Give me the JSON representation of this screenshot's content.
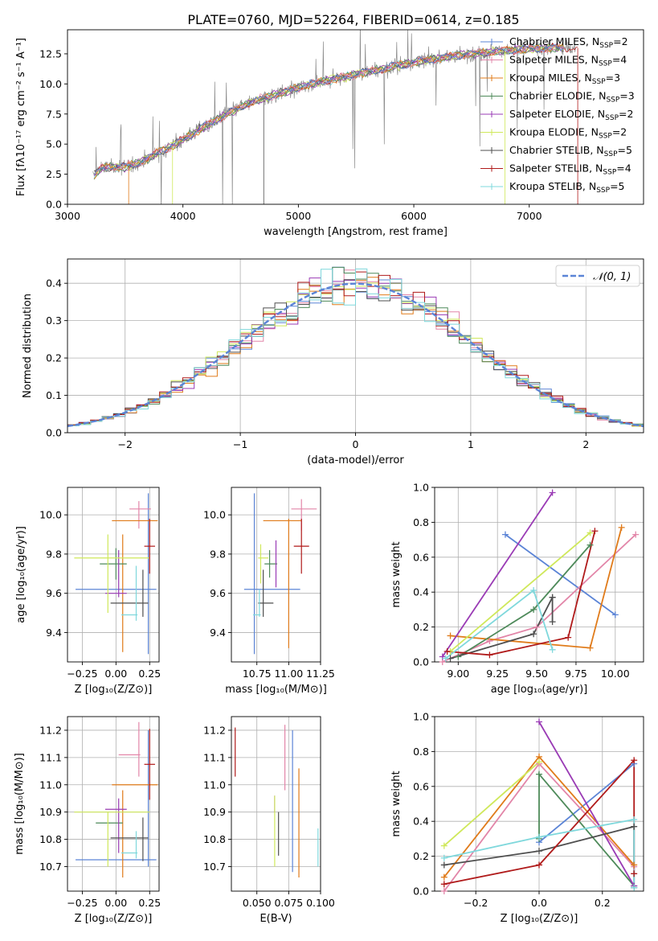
{
  "colors": {
    "chabrier_miles": "#5b84d6",
    "salpeter_miles": "#e285a8",
    "kroupa_miles": "#e07b1a",
    "chabrier_elodie": "#4e8a5a",
    "salpeter_elodie": "#9a3bb5",
    "kroupa_elodie": "#cfe85a",
    "chabrier_stelib": "#4f4f4f",
    "salpeter_stelib": "#b01a1a",
    "kroupa_stelib": "#7fd8dc",
    "normal": "#5b84d6"
  },
  "chart_data": [
    {
      "id": "spectrum",
      "type": "line",
      "title": "PLATE=0760, MJD=52264, FIBERID=0614, z=0.185",
      "xlabel": "wavelength [Angstrom, rest frame]",
      "ylabel": "Flux [fλ10⁻¹⁷ erg cm⁻² s⁻¹ A⁻¹]",
      "xlim": [
        3000,
        7990
      ],
      "ylim": [
        0,
        14.5
      ],
      "xticks": [
        "3000",
        "4000",
        "5000",
        "6000",
        "7000"
      ],
      "yticks": [
        "0.0",
        "2.5",
        "5.0",
        "7.5",
        "10.0",
        "12.5"
      ],
      "legend_position": "top-right",
      "legend": [
        {
          "key": "chabrier_miles",
          "label": "Chabrier MILES, N",
          "sub": "SSP",
          "tail": "=2"
        },
        {
          "key": "salpeter_miles",
          "label": "Salpeter MILES, N",
          "sub": "SSP",
          "tail": "=4"
        },
        {
          "key": "kroupa_miles",
          "label": "Kroupa MILES, N",
          "sub": "SSP",
          "tail": "=3"
        },
        {
          "key": "chabrier_elodie",
          "label": "Chabrier ELODIE, N",
          "sub": "SSP",
          "tail": "=3"
        },
        {
          "key": "salpeter_elodie",
          "label": "Salpeter ELODIE, N",
          "sub": "SSP",
          "tail": "=2"
        },
        {
          "key": "kroupa_elodie",
          "label": "Kroupa ELODIE, N",
          "sub": "SSP",
          "tail": "=2"
        },
        {
          "key": "chabrier_stelib",
          "label": "Chabrier STELIB, N",
          "sub": "SSP",
          "tail": "=5"
        },
        {
          "key": "salpeter_stelib",
          "label": "Salpeter STELIB, N",
          "sub": "SSP",
          "tail": "=4"
        },
        {
          "key": "kroupa_stelib",
          "label": "Kroupa STELIB, N",
          "sub": "SSP",
          "tail": "=5"
        }
      ],
      "continuum": [
        [
          3220,
          2.3
        ],
        [
          3300,
          3.0
        ],
        [
          3400,
          3.1
        ],
        [
          3500,
          3.1
        ],
        [
          3600,
          3.4
        ],
        [
          3700,
          3.8
        ],
        [
          3800,
          4.4
        ],
        [
          3900,
          4.8
        ],
        [
          4000,
          5.4
        ],
        [
          4200,
          6.5
        ],
        [
          4400,
          7.6
        ],
        [
          4600,
          8.5
        ],
        [
          4800,
          9.1
        ],
        [
          5000,
          9.7
        ],
        [
          5200,
          10.2
        ],
        [
          5400,
          10.6
        ],
        [
          5600,
          11.0
        ],
        [
          5800,
          11.4
        ],
        [
          6000,
          11.8
        ],
        [
          6200,
          12.1
        ],
        [
          6400,
          12.4
        ],
        [
          6600,
          12.6
        ],
        [
          6800,
          12.8
        ],
        [
          7000,
          12.9
        ],
        [
          7200,
          13.0
        ],
        [
          7400,
          13.0
        ]
      ]
    },
    {
      "id": "residuals",
      "type": "histogram",
      "xlabel": "(data-model)/error",
      "ylabel": "Normed distribution",
      "xlim": [
        -2.5,
        2.5
      ],
      "ylim": [
        0,
        0.465
      ],
      "xticks": [
        "−2",
        "−1",
        "0",
        "1",
        "2"
      ],
      "yticks": [
        "0.0",
        "0.1",
        "0.2",
        "0.3",
        "0.4"
      ],
      "grid": true,
      "legend_position": "top-right",
      "legend_label": "𝒩(0, 1)",
      "reference": {
        "name": "N(0,1)",
        "mean": 0,
        "sigma": 1
      },
      "bins": {
        "start": -2.5,
        "width": 0.1,
        "count": 50
      }
    },
    {
      "id": "age_vs_Z",
      "type": "errorbar",
      "xlabel": "Z [log₁₀(Z/Z⊙)]",
      "ylabel": "age  [log₁₀(age/yr)]",
      "xlim": [
        -0.36,
        0.32
      ],
      "ylim": [
        9.25,
        10.14
      ],
      "xticks": [
        "−0.25",
        "0.00",
        "0.25"
      ],
      "yticks": [
        "9.4",
        "9.6",
        "9.8",
        "10.0"
      ],
      "grid": true,
      "points": [
        {
          "key": "chabrier_miles",
          "x": 0.0,
          "xerr": 0.3,
          "y": 9.62,
          "yerr": 0.0
        },
        {
          "key": "chabrier_miles",
          "x": 0.24,
          "xerr": 0.0,
          "y": 9.7,
          "yerr": 0.41
        },
        {
          "key": "salpeter_miles",
          "x": 0.18,
          "xerr": 0.08,
          "y": 10.03,
          "yerr": 0.0
        },
        {
          "key": "salpeter_miles",
          "x": 0.17,
          "xerr": 0.0,
          "y": 10.0,
          "yerr": 0.07
        },
        {
          "key": "kroupa_miles",
          "x": 0.05,
          "xerr": 0.0,
          "y": 9.6,
          "yerr": 0.3
        },
        {
          "key": "kroupa_miles",
          "x": 0.14,
          "xerr": 0.17,
          "y": 9.97,
          "yerr": 0.0
        },
        {
          "key": "chabrier_elodie",
          "x": -0.02,
          "xerr": 0.1,
          "y": 9.75,
          "yerr": 0.0
        },
        {
          "key": "chabrier_elodie",
          "x": 0.0,
          "xerr": 0.0,
          "y": 9.75,
          "yerr": 0.08
        },
        {
          "key": "salpeter_elodie",
          "x": 0.0,
          "xerr": 0.08,
          "y": 9.6,
          "yerr": 0.0
        },
        {
          "key": "salpeter_elodie",
          "x": 0.02,
          "xerr": 0.0,
          "y": 9.7,
          "yerr": 0.12
        },
        {
          "key": "kroupa_elodie",
          "x": -0.03,
          "xerr": 0.28,
          "y": 9.78,
          "yerr": 0.0
        },
        {
          "key": "kroupa_elodie",
          "x": -0.06,
          "xerr": 0.0,
          "y": 9.7,
          "yerr": 0.2
        },
        {
          "key": "chabrier_stelib",
          "x": 0.1,
          "xerr": 0.14,
          "y": 9.55,
          "yerr": 0.0
        },
        {
          "key": "chabrier_stelib",
          "x": 0.2,
          "xerr": 0.0,
          "y": 9.6,
          "yerr": 0.12
        },
        {
          "key": "salpeter_stelib",
          "x": 0.25,
          "xerr": 0.04,
          "y": 9.84,
          "yerr": 0.14
        },
        {
          "key": "kroupa_stelib",
          "x": 0.1,
          "xerr": 0.06,
          "y": 9.49,
          "yerr": 0.0
        },
        {
          "key": "kroupa_stelib",
          "x": 0.15,
          "xerr": 0.0,
          "y": 9.6,
          "yerr": 0.14
        }
      ]
    },
    {
      "id": "age_vs_mass",
      "type": "errorbar",
      "xlabel": "mass [log₁₀(M/M⊙)]",
      "ylabel": "",
      "xlim": [
        10.55,
        11.25
      ],
      "ylim": [
        9.25,
        10.14
      ],
      "xticks": [
        "10.75",
        "11.00",
        "11.25"
      ],
      "yticks": [
        "9.4",
        "9.6",
        "9.8",
        "10.0"
      ],
      "grid": true,
      "points": [
        {
          "key": "chabrier_miles",
          "x": 10.87,
          "xerr": 0.22,
          "y": 9.62,
          "yerr": 0.0
        },
        {
          "key": "chabrier_miles",
          "x": 10.73,
          "xerr": 0.0,
          "y": 9.7,
          "yerr": 0.41
        },
        {
          "key": "salpeter_miles",
          "x": 11.12,
          "xerr": 0.1,
          "y": 10.03,
          "yerr": 0.0
        },
        {
          "key": "salpeter_miles",
          "x": 11.1,
          "xerr": 0.0,
          "y": 10.0,
          "yerr": 0.08
        },
        {
          "key": "kroupa_miles",
          "x": 11.0,
          "xerr": 0.0,
          "y": 9.65,
          "yerr": 0.33
        },
        {
          "key": "kroupa_miles",
          "x": 10.95,
          "xerr": 0.15,
          "y": 9.97,
          "yerr": 0.0
        },
        {
          "key": "chabrier_elodie",
          "x": 10.86,
          "xerr": 0.05,
          "y": 9.75,
          "yerr": 0.0
        },
        {
          "key": "chabrier_elodie",
          "x": 10.85,
          "xerr": 0.0,
          "y": 9.75,
          "yerr": 0.07
        },
        {
          "key": "salpeter_elodie",
          "x": 10.9,
          "xerr": 0.0,
          "y": 9.75,
          "yerr": 0.12
        },
        {
          "key": "kroupa_elodie",
          "x": 10.8,
          "xerr": 0.04,
          "y": 9.78,
          "yerr": 0.0
        },
        {
          "key": "kroupa_elodie",
          "x": 10.78,
          "xerr": 0.0,
          "y": 9.75,
          "yerr": 0.1
        },
        {
          "key": "chabrier_stelib",
          "x": 10.82,
          "xerr": 0.06,
          "y": 9.55,
          "yerr": 0.0
        },
        {
          "key": "chabrier_stelib",
          "x": 10.8,
          "xerr": 0.0,
          "y": 9.6,
          "yerr": 0.12
        },
        {
          "key": "salpeter_stelib",
          "x": 11.1,
          "xerr": 0.06,
          "y": 9.84,
          "yerr": 0.14
        },
        {
          "key": "kroupa_stelib",
          "x": 10.75,
          "xerr": 0.03,
          "y": 9.49,
          "yerr": 0.0
        },
        {
          "key": "kroupa_stelib",
          "x": 10.77,
          "xerr": 0.0,
          "y": 9.55,
          "yerr": 0.07
        }
      ]
    },
    {
      "id": "weight_vs_age",
      "type": "line",
      "xlabel": "age  [log₁₀(age/yr)]",
      "ylabel": "mass weight",
      "xlim": [
        8.85,
        10.18
      ],
      "ylim": [
        0,
        1.0
      ],
      "xticks": [
        "9.00",
        "9.25",
        "9.50",
        "9.75",
        "10.00"
      ],
      "yticks": [
        "0.0",
        "0.2",
        "0.4",
        "0.6",
        "0.8",
        "1.0"
      ],
      "grid": true,
      "series": [
        {
          "key": "chabrier_miles",
          "x": [
            9.3,
            10.0
          ],
          "y": [
            0.73,
            0.27
          ]
        },
        {
          "key": "salpeter_miles",
          "x": [
            8.9,
            9.2,
            9.5,
            10.13
          ],
          "y": [
            0.0,
            0.12,
            0.2,
            0.73
          ]
        },
        {
          "key": "kroupa_miles",
          "x": [
            8.95,
            9.84,
            10.04
          ],
          "y": [
            0.15,
            0.08,
            0.77
          ]
        },
        {
          "key": "chabrier_elodie",
          "x": [
            9.0,
            9.48,
            9.84
          ],
          "y": [
            0.03,
            0.3,
            0.67
          ]
        },
        {
          "key": "salpeter_elodie",
          "x": [
            8.9,
            9.6
          ],
          "y": [
            0.03,
            0.97
          ]
        },
        {
          "key": "kroupa_elodie",
          "x": [
            8.95,
            9.84
          ],
          "y": [
            0.06,
            0.74
          ]
        },
        {
          "key": "chabrier_stelib",
          "x": [
            8.95,
            9.48,
            9.6,
            9.6,
            9.6
          ],
          "y": [
            0.02,
            0.16,
            0.37,
            0.23,
            0.37
          ]
        },
        {
          "key": "salpeter_stelib",
          "x": [
            8.93,
            9.2,
            9.7,
            9.87
          ],
          "y": [
            0.06,
            0.04,
            0.14,
            0.75
          ]
        },
        {
          "key": "kroupa_stelib",
          "x": [
            8.92,
            9.48,
            9.6
          ],
          "y": [
            0.02,
            0.41,
            0.07
          ]
        }
      ]
    },
    {
      "id": "mass_vs_Z",
      "type": "errorbar",
      "xlabel": "Z [log₁₀(Z/Z⊙)]",
      "ylabel": "mass [log₁₀(M/M⊙)]",
      "xlim": [
        -0.36,
        0.32
      ],
      "ylim": [
        10.61,
        11.25
      ],
      "xticks": [
        "−0.25",
        "0.00",
        "0.25"
      ],
      "yticks": [
        "10.7",
        "10.8",
        "10.9",
        "11.0",
        "11.1",
        "11.2"
      ],
      "grid": true,
      "points": [
        {
          "key": "chabrier_miles",
          "x": 0.0,
          "xerr": 0.3,
          "y": 10.725,
          "yerr": 0.0
        },
        {
          "key": "chabrier_miles",
          "x": 0.24,
          "xerr": 0.0,
          "y": 10.95,
          "yerr": 0.25
        },
        {
          "key": "salpeter_miles",
          "x": 0.1,
          "xerr": 0.08,
          "y": 11.11,
          "yerr": 0.0
        },
        {
          "key": "salpeter_miles",
          "x": 0.17,
          "xerr": 0.0,
          "y": 11.13,
          "yerr": 0.1
        },
        {
          "key": "kroupa_miles",
          "x": 0.05,
          "xerr": 0.0,
          "y": 10.82,
          "yerr": 0.16
        },
        {
          "key": "kroupa_miles",
          "x": 0.14,
          "xerr": 0.17,
          "y": 11.0,
          "yerr": 0.0
        },
        {
          "key": "chabrier_elodie",
          "x": -0.05,
          "xerr": 0.1,
          "y": 10.86,
          "yerr": 0.0
        },
        {
          "key": "salpeter_elodie",
          "x": 0.0,
          "xerr": 0.08,
          "y": 10.91,
          "yerr": 0.0
        },
        {
          "key": "salpeter_elodie",
          "x": 0.02,
          "xerr": 0.0,
          "y": 10.85,
          "yerr": 0.1
        },
        {
          "key": "kroupa_elodie",
          "x": -0.03,
          "xerr": 0.28,
          "y": 10.9,
          "yerr": 0.0
        },
        {
          "key": "kroupa_elodie",
          "x": -0.06,
          "xerr": 0.0,
          "y": 10.8,
          "yerr": 0.1
        },
        {
          "key": "chabrier_stelib",
          "x": 0.1,
          "xerr": 0.14,
          "y": 10.805,
          "yerr": 0.0
        },
        {
          "key": "chabrier_stelib",
          "x": 0.2,
          "xerr": 0.0,
          "y": 10.8,
          "yerr": 0.08
        },
        {
          "key": "salpeter_stelib",
          "x": 0.25,
          "xerr": 0.04,
          "y": 11.075,
          "yerr": 0.13
        },
        {
          "key": "kroupa_stelib",
          "x": 0.1,
          "xerr": 0.06,
          "y": 10.75,
          "yerr": 0.0
        },
        {
          "key": "kroupa_stelib",
          "x": 0.15,
          "xerr": 0.0,
          "y": 10.78,
          "yerr": 0.05
        }
      ]
    },
    {
      "id": "mass_vs_EBV",
      "type": "errorbar",
      "xlabel": "E(B-V)",
      "ylabel": "",
      "xlim": [
        0.03,
        0.1
      ],
      "ylim": [
        10.61,
        11.25
      ],
      "xticks": [
        "0.050",
        "0.075",
        "0.100"
      ],
      "yticks": [
        "10.7",
        "10.8",
        "10.9",
        "11.0",
        "11.1",
        "11.2"
      ],
      "grid": true,
      "points": [
        {
          "key": "salpeter_stelib",
          "x": 0.033,
          "xerr": 0.0,
          "y": 11.12,
          "yerr": 0.09
        },
        {
          "key": "salpeter_miles",
          "x": 0.072,
          "xerr": 0.0,
          "y": 11.1,
          "yerr": 0.12
        },
        {
          "key": "chabrier_miles",
          "x": 0.078,
          "xerr": 0.0,
          "y": 10.94,
          "yerr": 0.26
        },
        {
          "key": "kroupa_miles",
          "x": 0.083,
          "xerr": 0.0,
          "y": 10.86,
          "yerr": 0.2
        },
        {
          "key": "salpeter_elodie",
          "x": 0.064,
          "xerr": 0.0,
          "y": 10.93,
          "yerr": 0.03
        },
        {
          "key": "kroupa_elodie",
          "x": 0.064,
          "xerr": 0.0,
          "y": 10.83,
          "yerr": 0.13
        },
        {
          "key": "chabrier_stelib",
          "x": 0.067,
          "xerr": 0.0,
          "y": 10.82,
          "yerr": 0.08
        },
        {
          "key": "kroupa_stelib",
          "x": 0.098,
          "xerr": 0.0,
          "y": 10.77,
          "yerr": 0.07
        }
      ]
    },
    {
      "id": "weight_vs_Z",
      "type": "line",
      "xlabel": "Z [log₁₀(Z/Z⊙)]",
      "ylabel": "mass weight",
      "xlim": [
        -0.33,
        0.33
      ],
      "ylim": [
        0,
        1.0
      ],
      "xticks": [
        "−0.2",
        "0.0",
        "0.2"
      ],
      "yticks": [
        "0.0",
        "0.2",
        "0.4",
        "0.6",
        "0.8",
        "1.0"
      ],
      "grid": true,
      "series": [
        {
          "key": "chabrier_miles",
          "x": [
            0.0,
            0.3
          ],
          "y": [
            0.28,
            0.73
          ]
        },
        {
          "key": "salpeter_miles",
          "x": [
            -0.3,
            0.0,
            0.3
          ],
          "y": [
            0.0,
            0.73,
            0.14
          ]
        },
        {
          "key": "kroupa_miles",
          "x": [
            -0.3,
            0.0,
            0.3
          ],
          "y": [
            0.08,
            0.77,
            0.15
          ]
        },
        {
          "key": "chabrier_elodie",
          "x": [
            0.0,
            0.0,
            0.3
          ],
          "y": [
            0.3,
            0.67,
            0.03
          ]
        },
        {
          "key": "salpeter_elodie",
          "x": [
            0.0,
            0.3
          ],
          "y": [
            0.97,
            0.03
          ]
        },
        {
          "key": "kroupa_elodie",
          "x": [
            -0.3,
            0.0
          ],
          "y": [
            0.26,
            0.74
          ]
        },
        {
          "key": "chabrier_stelib",
          "x": [
            -0.3,
            0.0,
            0.3,
            0.3
          ],
          "y": [
            0.15,
            0.23,
            0.37,
            0.02
          ]
        },
        {
          "key": "salpeter_stelib",
          "x": [
            -0.3,
            0.0,
            0.3,
            0.3
          ],
          "y": [
            0.04,
            0.15,
            0.75,
            0.1
          ]
        },
        {
          "key": "kroupa_stelib",
          "x": [
            -0.3,
            0.0,
            0.3,
            0.3
          ],
          "y": [
            0.19,
            0.31,
            0.41,
            0.02
          ]
        }
      ]
    }
  ]
}
